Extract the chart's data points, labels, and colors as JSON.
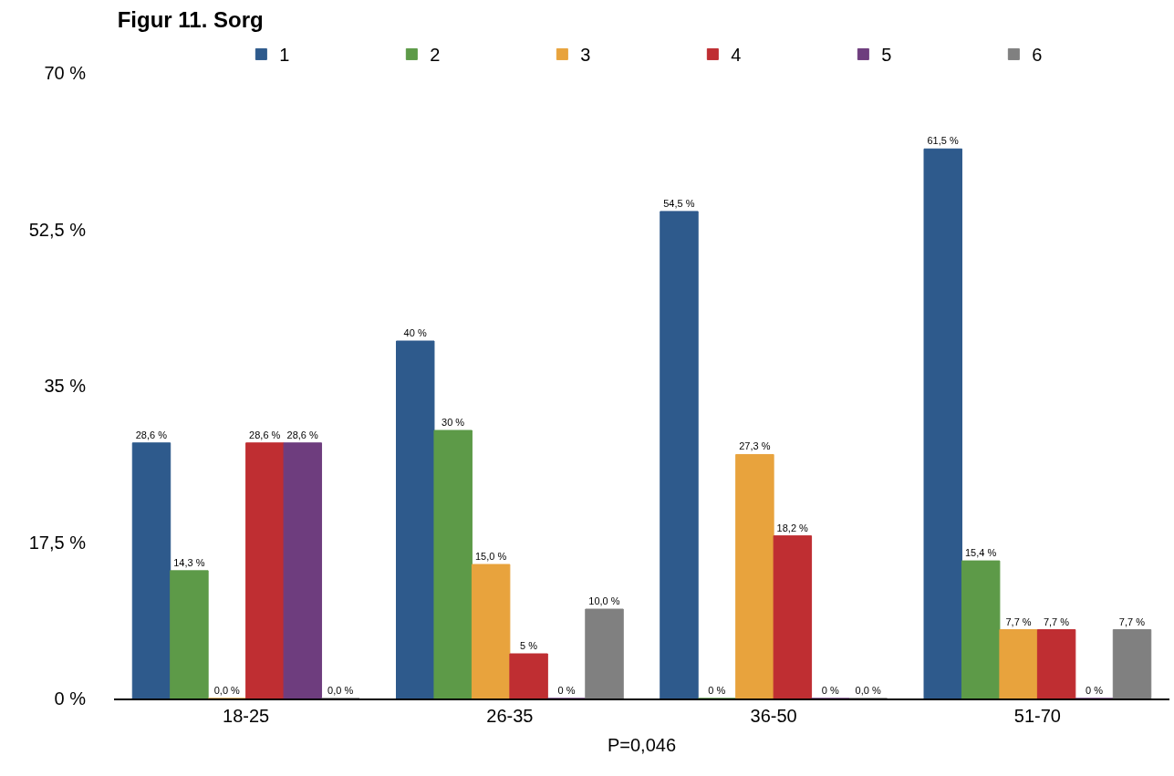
{
  "chart_data": {
    "type": "bar",
    "title": "Figur 11. Sorg",
    "xlabel": "P=0,046",
    "categories": [
      "18-25",
      "26-35",
      "36-50",
      "51-70"
    ],
    "series": [
      {
        "name": "1",
        "color": "#2e5a8c",
        "values": [
          28.6,
          40,
          54.5,
          61.5
        ],
        "value_labels": [
          "28,6 %",
          "40 %",
          "54,5 %",
          "61,5 %"
        ]
      },
      {
        "name": "2",
        "color": "#5d9a48",
        "values": [
          14.3,
          30,
          0,
          15.4
        ],
        "value_labels": [
          "14,3 %",
          "30 %",
          "0 %",
          "15,4 %"
        ]
      },
      {
        "name": "3",
        "color": "#e8a33d",
        "values": [
          0,
          15.0,
          27.3,
          7.7
        ],
        "value_labels": [
          "0,0 %",
          "15,0 %",
          "27,3 %",
          "7,7 %"
        ]
      },
      {
        "name": "4",
        "color": "#bf2e32",
        "values": [
          28.6,
          5,
          18.2,
          7.7
        ],
        "value_labels": [
          "28,6 %",
          "5 %",
          "18,2 %",
          "7,7 %"
        ]
      },
      {
        "name": "5",
        "color": "#6e3d7e",
        "values": [
          28.6,
          0,
          0,
          0
        ],
        "value_labels": [
          "28,6 %",
          "0 %",
          "0 %",
          "0 %"
        ]
      },
      {
        "name": "6",
        "color": "#808080",
        "values": [
          0,
          10.0,
          0,
          7.7
        ],
        "value_labels": [
          "0,0 %",
          "10,0 %",
          "0,0 %",
          "7,7 %"
        ]
      }
    ],
    "ylim": [
      0,
      70
    ],
    "yticks": [
      {
        "value": 0,
        "label": "0 %"
      },
      {
        "value": 17.5,
        "label": "17,5 %"
      },
      {
        "value": 35,
        "label": "35 %"
      },
      {
        "value": 52.5,
        "label": "52,5 %"
      },
      {
        "value": 70,
        "label": "70 %"
      }
    ],
    "legend": "top"
  }
}
